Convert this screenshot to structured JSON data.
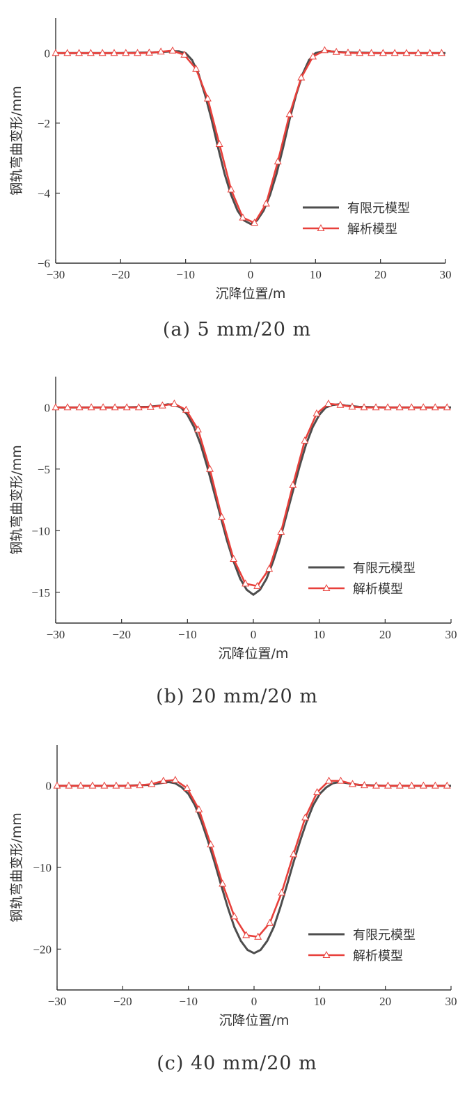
{
  "chart_data": [
    {
      "type": "line",
      "caption": "(a) 5 mm/20 m",
      "xlabel": "沉降位置/m",
      "ylabel": "钢轨弯曲变形/mm",
      "xlim": [
        -30,
        30
      ],
      "ylim": [
        -6,
        1
      ],
      "xticks": [
        -30,
        -20,
        -10,
        0,
        10,
        20,
        30
      ],
      "yticks": [
        0,
        -2,
        -4,
        -6
      ],
      "xtick_labels": [
        "−30",
        "−20",
        "−10",
        "0",
        "10",
        "20",
        "30"
      ],
      "ytick_labels": [
        "0",
        "−2",
        "−4",
        "−6"
      ],
      "legend_position": "lower-right",
      "series": [
        {
          "name": "有限元模型",
          "color": "#4d4d4d",
          "x": [
            -30,
            -20,
            -15,
            -13,
            -12,
            -11,
            -10,
            -9,
            -8,
            -7,
            -6,
            -5,
            -4,
            -3,
            -2,
            -1,
            0,
            1,
            2,
            3,
            4,
            5,
            6,
            7,
            8,
            9,
            10,
            11,
            12,
            13,
            15,
            20,
            30
          ],
          "y": [
            0,
            0,
            0.02,
            0.04,
            0.05,
            0.05,
            0.0,
            -0.2,
            -0.6,
            -1.2,
            -1.9,
            -2.7,
            -3.45,
            -4.05,
            -4.5,
            -4.78,
            -4.88,
            -4.78,
            -4.5,
            -4.05,
            -3.45,
            -2.7,
            -1.9,
            -1.2,
            -0.6,
            -0.2,
            0.0,
            0.05,
            0.05,
            0.04,
            0.02,
            0,
            0
          ]
        },
        {
          "name": "解析模型",
          "color": "#e8403b",
          "marker": "triangle",
          "x": [
            -30,
            -28.2,
            -26.4,
            -24.6,
            -22.8,
            -21,
            -19.2,
            -17.4,
            -15.6,
            -13.8,
            -12,
            -10.2,
            -8.4,
            -6.6,
            -4.8,
            -3,
            -1.2,
            0.6,
            2.4,
            4.2,
            6,
            7.8,
            9.6,
            11.4,
            13.2,
            15,
            16.8,
            18.6,
            20.4,
            22.2,
            24,
            25.8,
            27.6,
            29.4
          ],
          "y": [
            0,
            0,
            0,
            0,
            0,
            0,
            0,
            0,
            0.01,
            0.04,
            0.07,
            -0.05,
            -0.45,
            -1.3,
            -2.6,
            -3.9,
            -4.7,
            -4.85,
            -4.3,
            -3.1,
            -1.75,
            -0.7,
            -0.1,
            0.08,
            0.03,
            0.01,
            0,
            0,
            0,
            0,
            0,
            0,
            0,
            0
          ]
        }
      ]
    },
    {
      "type": "line",
      "caption": "(b) 20 mm/20 m",
      "xlabel": "沉降位置/m",
      "ylabel": "钢轨弯曲变形/mm",
      "xlim": [
        -30,
        30
      ],
      "ylim": [
        -17.5,
        2.5
      ],
      "xticks": [
        -30,
        -20,
        -10,
        0,
        10,
        20,
        30
      ],
      "yticks": [
        0,
        -5,
        -10,
        -15
      ],
      "xtick_labels": [
        "−30",
        "−20",
        "−10",
        "0",
        "10",
        "20",
        "30"
      ],
      "ytick_labels": [
        "0",
        "−5",
        "−10",
        "−15"
      ],
      "legend_position": "lower-right",
      "series": [
        {
          "name": "有限元模型",
          "color": "#4d4d4d",
          "x": [
            -30,
            -20,
            -16,
            -14,
            -13,
            -12,
            -11,
            -10,
            -9,
            -8,
            -7,
            -6,
            -5,
            -4,
            -3,
            -2,
            -1,
            0,
            1,
            2,
            3,
            4,
            5,
            6,
            7,
            8,
            9,
            10,
            11,
            12,
            13,
            14,
            16,
            20,
            30
          ],
          "y": [
            0,
            0,
            0.05,
            0.15,
            0.25,
            0.2,
            0.0,
            -0.6,
            -1.6,
            -3.0,
            -4.8,
            -6.8,
            -8.8,
            -10.8,
            -12.5,
            -13.9,
            -14.8,
            -15.2,
            -14.8,
            -13.9,
            -12.5,
            -10.8,
            -8.8,
            -6.8,
            -4.8,
            -3.0,
            -1.6,
            -0.6,
            0.0,
            0.2,
            0.25,
            0.15,
            0.05,
            0,
            0
          ]
        },
        {
          "name": "解析模型",
          "color": "#e8403b",
          "marker": "triangle",
          "x": [
            -30,
            -28.2,
            -26.4,
            -24.6,
            -22.8,
            -21,
            -19.2,
            -17.4,
            -15.6,
            -13.8,
            -12,
            -10.2,
            -8.4,
            -6.6,
            -4.8,
            -3,
            -1.2,
            0.6,
            2.4,
            4.2,
            6,
            7.8,
            9.6,
            11.4,
            13.2,
            15,
            16.8,
            18.6,
            20.4,
            22.2,
            24,
            25.8,
            27.6,
            29.4
          ],
          "y": [
            0,
            0,
            0,
            0,
            0,
            0,
            0,
            0,
            0.03,
            0.15,
            0.3,
            -0.2,
            -1.8,
            -5.0,
            -8.9,
            -12.3,
            -14.3,
            -14.5,
            -13.1,
            -10.1,
            -6.3,
            -2.7,
            -0.5,
            0.3,
            0.2,
            0.05,
            0,
            0,
            0,
            0,
            0,
            0,
            0,
            0
          ]
        }
      ]
    },
    {
      "type": "line",
      "caption": "(c) 40 mm/20 m",
      "xlabel": "沉降位置/m",
      "ylabel": "钢轨弯曲变形/mm",
      "xlim": [
        -30,
        30
      ],
      "ylim": [
        -25,
        5
      ],
      "xticks": [
        -30,
        -20,
        -10,
        0,
        10,
        20,
        30
      ],
      "yticks": [
        0,
        -10,
        -20
      ],
      "xtick_labels": [
        "−30",
        "−20",
        "−10",
        "0",
        "10",
        "20",
        "30"
      ],
      "ytick_labels": [
        "0",
        "−10",
        "−20"
      ],
      "legend_position": "lower-right",
      "series": [
        {
          "name": "有限元模型",
          "color": "#4d4d4d",
          "x": [
            -30,
            -20,
            -16,
            -14,
            -13,
            -12,
            -11,
            -10,
            -9,
            -8,
            -7,
            -6,
            -5,
            -4,
            -3,
            -2,
            -1,
            0,
            1,
            2,
            3,
            4,
            5,
            6,
            7,
            8,
            9,
            10,
            11,
            12,
            13,
            14,
            16,
            20,
            30
          ],
          "y": [
            0,
            0,
            0.1,
            0.35,
            0.45,
            0.3,
            -0.2,
            -1.0,
            -2.4,
            -4.4,
            -6.8,
            -9.4,
            -12.2,
            -14.9,
            -17.3,
            -19.0,
            -20.1,
            -20.5,
            -20.1,
            -19.0,
            -17.3,
            -14.9,
            -12.2,
            -9.4,
            -6.8,
            -4.4,
            -2.4,
            -1.0,
            -0.2,
            0.3,
            0.45,
            0.35,
            0.1,
            0,
            0
          ]
        },
        {
          "name": "解析模型",
          "color": "#e8403b",
          "marker": "triangle",
          "x": [
            -30,
            -28.2,
            -26.4,
            -24.6,
            -22.8,
            -21,
            -19.2,
            -17.4,
            -15.6,
            -13.8,
            -12,
            -10.2,
            -8.4,
            -6.6,
            -4.8,
            -3,
            -1.2,
            0.6,
            2.4,
            4.2,
            6,
            7.8,
            9.6,
            11.4,
            13.2,
            15,
            16.8,
            18.6,
            20.4,
            22.2,
            24,
            25.8,
            27.6,
            29.4
          ],
          "y": [
            0,
            0,
            0,
            0,
            0,
            0,
            0,
            0.05,
            0.2,
            0.6,
            0.7,
            -0.3,
            -2.9,
            -7.2,
            -12.0,
            -16.0,
            -18.3,
            -18.5,
            -16.8,
            -13.1,
            -8.4,
            -3.9,
            -0.8,
            0.6,
            0.6,
            0.2,
            0.05,
            0,
            0,
            0,
            0,
            0,
            0,
            0
          ]
        }
      ]
    }
  ]
}
